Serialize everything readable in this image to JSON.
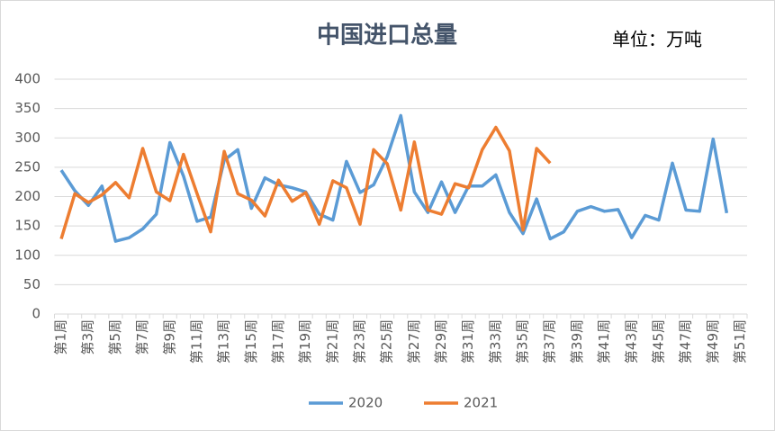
{
  "chart_data": {
    "type": "line",
    "title": "中国进口总量",
    "subtitle": "单位：万吨",
    "categories": [
      "第1周",
      null,
      "第3周",
      null,
      "第5周",
      null,
      "第7周",
      null,
      "第9周",
      null,
      "第11周",
      null,
      "第13周",
      null,
      "第15周",
      null,
      "第17周",
      null,
      "第19周",
      null,
      "第21周",
      null,
      "第23周",
      null,
      "第25周",
      null,
      "第27周",
      null,
      "第29周",
      null,
      "第31周",
      null,
      "第33周",
      null,
      "第35周",
      null,
      "第37周",
      null,
      "第39周",
      null,
      "第41周",
      null,
      "第43周",
      null,
      "第45周",
      null,
      "第47周",
      null,
      "第49周",
      null,
      "第51周"
    ],
    "series": [
      {
        "name": "2020",
        "color": "#5b9bd5",
        "values": [
          245,
          210,
          185,
          218,
          124,
          130,
          145,
          170,
          292,
          235,
          158,
          165,
          262,
          280,
          180,
          232,
          220,
          215,
          208,
          170,
          160,
          260,
          207,
          220,
          268,
          338,
          208,
          173,
          225,
          173,
          218,
          218,
          237,
          173,
          137,
          196,
          128,
          140,
          175,
          183,
          175,
          178,
          130,
          168,
          160,
          257,
          177,
          175,
          298,
          172,
          null
        ]
      },
      {
        "name": "2021",
        "color": "#ed7d31",
        "values": [
          128,
          205,
          190,
          203,
          224,
          198,
          282,
          208,
          193,
          272,
          205,
          140,
          277,
          205,
          194,
          167,
          228,
          192,
          207,
          153,
          227,
          215,
          153,
          280,
          256,
          177,
          293,
          177,
          170,
          222,
          215,
          280,
          318,
          278,
          143,
          282,
          257,
          null,
          null,
          null,
          null,
          null,
          null,
          null,
          null,
          null,
          null,
          null,
          null,
          null,
          null
        ]
      }
    ],
    "ylim": [
      0,
      400
    ],
    "yticks": [
      0,
      50,
      100,
      150,
      200,
      250,
      300,
      350,
      400
    ],
    "grid": true,
    "legend": "bottom"
  }
}
